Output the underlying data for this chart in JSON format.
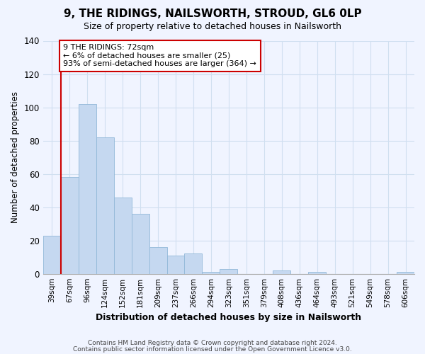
{
  "title": "9, THE RIDINGS, NAILSWORTH, STROUD, GL6 0LP",
  "subtitle": "Size of property relative to detached houses in Nailsworth",
  "xlabel": "Distribution of detached houses by size in Nailsworth",
  "ylabel": "Number of detached properties",
  "bar_labels": [
    "39sqm",
    "67sqm",
    "96sqm",
    "124sqm",
    "152sqm",
    "181sqm",
    "209sqm",
    "237sqm",
    "266sqm",
    "294sqm",
    "323sqm",
    "351sqm",
    "379sqm",
    "408sqm",
    "436sqm",
    "464sqm",
    "493sqm",
    "521sqm",
    "549sqm",
    "578sqm",
    "606sqm"
  ],
  "bar_values": [
    23,
    58,
    102,
    82,
    46,
    36,
    16,
    11,
    12,
    1,
    3,
    0,
    0,
    2,
    0,
    1,
    0,
    0,
    0,
    0,
    1
  ],
  "bar_color": "#c5d8f0",
  "bar_edge_color": "#92b8d8",
  "vline_color": "#cc0000",
  "annotation_text": "9 THE RIDINGS: 72sqm\n← 6% of detached houses are smaller (25)\n93% of semi-detached houses are larger (364) →",
  "annotation_box_color": "#ffffff",
  "annotation_box_edgecolor": "#cc0000",
  "ylim": [
    0,
    140
  ],
  "yticks": [
    0,
    20,
    40,
    60,
    80,
    100,
    120,
    140
  ],
  "grid_color": "#d0dff0",
  "footer1": "Contains HM Land Registry data © Crown copyright and database right 2024.",
  "footer2": "Contains public sector information licensed under the Open Government Licence v3.0.",
  "bg_color": "#f0f4ff"
}
